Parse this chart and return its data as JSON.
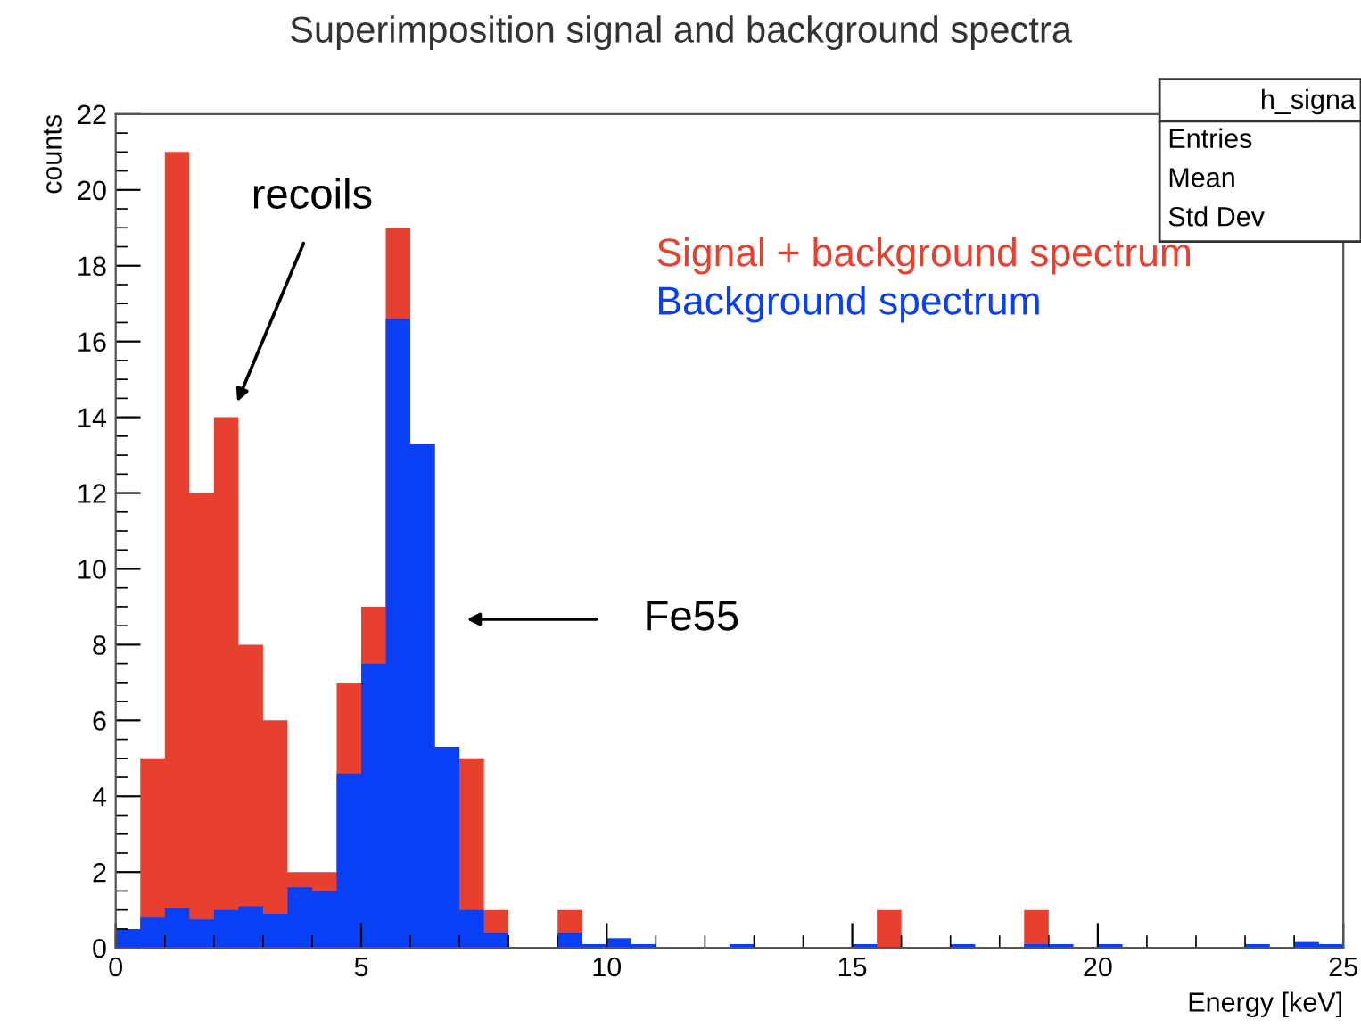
{
  "chart_data": {
    "type": "histogram",
    "title": "Superimposition signal and background spectra",
    "xlabel": "Energy [keV]",
    "ylabel": "counts",
    "bins": [
      0,
      0.5,
      1,
      1.5,
      2,
      2.5,
      3,
      3.5,
      4,
      4.5,
      5,
      5.5,
      6,
      6.5,
      7,
      7.5,
      8,
      8.5,
      9,
      9.5,
      10,
      10.5,
      11,
      11.5,
      12,
      12.5,
      13,
      13.5,
      14,
      14.5,
      15,
      15.5,
      16,
      16.5,
      17,
      17.5,
      18,
      18.5,
      19,
      19.5,
      20,
      20.5,
      21,
      21.5,
      22,
      22.5,
      23,
      23.5,
      24,
      24.5,
      25
    ],
    "series": [
      {
        "name": "Signal + background spectrum",
        "color": "#e8402f",
        "values": [
          0.5,
          5,
          21,
          12,
          14,
          8,
          6,
          2,
          2,
          7,
          9,
          19,
          13.3,
          5.3,
          5,
          1,
          0,
          0,
          1,
          0.1,
          0.25,
          0.1,
          0,
          0,
          0,
          0.1,
          0,
          0,
          0,
          0,
          0.1,
          1,
          0,
          0,
          0.1,
          0,
          0,
          1,
          0.1,
          0,
          0.1,
          0,
          0,
          0,
          0,
          0,
          0.1,
          0,
          0.15,
          0.1
        ]
      },
      {
        "name": "Background spectrum",
        "color": "#0a40f5",
        "values": [
          0.5,
          0.8,
          1.05,
          0.75,
          1,
          1.1,
          0.9,
          1.6,
          1.5,
          4.6,
          7.5,
          16.6,
          13.3,
          5.3,
          1,
          0.4,
          0,
          0,
          0.4,
          0.1,
          0.25,
          0.1,
          0,
          0,
          0,
          0.1,
          0,
          0,
          0,
          0,
          0.1,
          0,
          0,
          0,
          0.1,
          0,
          0,
          0.1,
          0.1,
          0,
          0.1,
          0,
          0,
          0,
          0,
          0,
          0.1,
          0,
          0.15,
          0.1
        ]
      }
    ],
    "xlim": [
      0,
      25
    ],
    "xticks": [
      0,
      5,
      10,
      15,
      20,
      25
    ],
    "ylim": [
      0,
      22
    ],
    "yticks": [
      0,
      2,
      4,
      6,
      8,
      10,
      12,
      14,
      16,
      18,
      20,
      22
    ],
    "grid": false,
    "annotations": [
      "recoils",
      "Fe55",
      "h_signa",
      "Entries",
      "Mean",
      "Std Dev"
    ]
  }
}
